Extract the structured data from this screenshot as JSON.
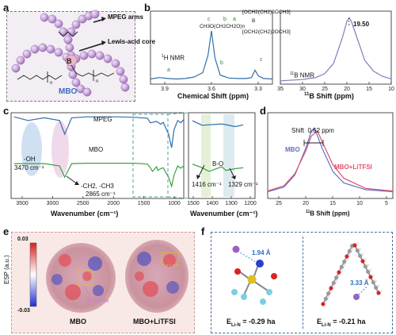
{
  "panels": {
    "a": {
      "label": "a",
      "arrow_labels": [
        "MPEG arms",
        "Lewis-acid core"
      ],
      "caption": "MBO",
      "core_letter": "B",
      "subscript": "n"
    },
    "b": {
      "label": "b",
      "h_nmr": {
        "title": "1H NMR",
        "xlabel": "Chemical Shift (ppm)",
        "ticks": [
          "3.9",
          "3.6",
          "3.3"
        ],
        "peak_letters": [
          "a",
          "b",
          "c"
        ],
        "structure_text": "[OCH2(CH2)2OCH3]",
        "structure_left": "CH3O(CH2CH2O)n",
        "structure_right": "[OCH2(CH2)2OCH3]",
        "structure_letters": [
          "c",
          "b",
          "a"
        ]
      },
      "b_nmr": {
        "title": "11B NMR",
        "xlabel": "11B Shift (ppm)",
        "ticks": [
          "35",
          "30",
          "25",
          "20",
          "15",
          "10"
        ],
        "peak_value": "19.50"
      }
    },
    "c": {
      "label": "c",
      "series_labels": [
        "MPEG",
        "MBO"
      ],
      "annotations": {
        "oh": "-OH",
        "oh_value": "3470 cm⁻¹",
        "ch": "-CH2, -CH3",
        "ch_value": "2865 cm⁻¹",
        "bo": "B-O",
        "bo_left": "1416 cm⁻¹",
        "bo_right": "1329 cm⁻¹"
      },
      "left_xlabel": "Wavenumber (cm⁻¹)",
      "right_xlabel": "Wavenumber (cm⁻¹)",
      "left_ticks": [
        "3500",
        "3000",
        "2500",
        "2000",
        "1500",
        "1000"
      ],
      "right_ticks": [
        "1500",
        "1400",
        "1300",
        "1200"
      ]
    },
    "d": {
      "label": "d",
      "shift_label": "Shift",
      "shift_value": "0.62 ppm",
      "series": [
        "MBO",
        "MBO+LiTFSI"
      ],
      "xlabel": "11B Shift (ppm)",
      "ticks": [
        "25",
        "20",
        "15",
        "10",
        "5"
      ]
    },
    "e": {
      "label": "e",
      "colorbar_title": "ESP (a.u.)",
      "colorbar_max": "0.03",
      "colorbar_min": "-0.03",
      "b_atom": "B atom",
      "captions": [
        "MBO",
        "MBO+LiTFSI"
      ]
    },
    "f": {
      "label": "f",
      "left_distance": "1.94 Å",
      "right_distance": "3.33 Å",
      "left_energy": "E",
      "left_energy_sub": "Li-N",
      "left_energy_value": " = -0.29 ha",
      "right_energy": "E",
      "right_energy_sub": "Li-N",
      "right_energy_value": " = -0.21 ha"
    }
  },
  "colors": {
    "mpeg": "#2f6fa8",
    "mbo": "#3aa23a",
    "litfsi": "#e0526a",
    "mbo_blue": "#5f6fc8",
    "sphere": "#c9a6dd",
    "label_blue": "#3b6cc0"
  },
  "chart_data": [
    {
      "type": "line",
      "title": "1H NMR",
      "xlabel": "Chemical Shift (ppm)",
      "x": [
        3.95,
        3.9,
        3.85,
        3.8,
        3.75,
        3.7,
        3.65,
        3.62,
        3.6,
        3.58,
        3.55,
        3.5,
        3.45,
        3.4,
        3.37,
        3.35,
        3.33,
        3.3,
        3.25
      ],
      "values": [
        0.02,
        0.05,
        0.03,
        0.02,
        0.03,
        0.06,
        0.15,
        0.5,
        1.0,
        0.45,
        0.1,
        0.04,
        0.03,
        0.03,
        0.05,
        0.2,
        0.08,
        0.03,
        0.02
      ],
      "xlim": [
        3.95,
        3.25
      ]
    },
    {
      "type": "line",
      "title": "11B NMR",
      "xlabel": "11B Shift (ppm)",
      "peak": 19.5,
      "x": [
        35,
        30,
        27,
        25,
        23,
        21,
        20,
        19.5,
        19,
        18,
        16,
        14,
        12,
        10
      ],
      "values": [
        0.03,
        0.05,
        0.08,
        0.14,
        0.3,
        0.7,
        0.95,
        1.0,
        0.95,
        0.75,
        0.35,
        0.18,
        0.1,
        0.06
      ],
      "xlim": [
        35,
        10
      ]
    },
    {
      "type": "line",
      "title": "",
      "xlabel": "Wavenumber (cm⁻¹)",
      "series": [
        {
          "name": "MPEG",
          "x": [
            3700,
            3470,
            3200,
            2950,
            2865,
            2750,
            2500,
            2000,
            1700,
            1500,
            1450,
            1350,
            1280,
            1240,
            1150,
            1100,
            1060,
            1000,
            950,
            900
          ],
          "values": [
            0.98,
            0.9,
            0.96,
            0.9,
            0.6,
            0.96,
            0.98,
            0.98,
            0.97,
            0.95,
            0.85,
            0.88,
            0.82,
            0.86,
            0.6,
            0.3,
            0.7,
            0.9,
            0.85,
            0.92
          ]
        },
        {
          "name": "MBO",
          "x": [
            3700,
            3470,
            3200,
            2950,
            2865,
            2750,
            2500,
            2000,
            1700,
            1500,
            1450,
            1416,
            1350,
            1329,
            1280,
            1240,
            1150,
            1100,
            1060,
            1000,
            950,
            900
          ],
          "values": [
            0.55,
            0.55,
            0.55,
            0.5,
            0.25,
            0.55,
            0.56,
            0.56,
            0.56,
            0.54,
            0.46,
            0.38,
            0.48,
            0.4,
            0.44,
            0.46,
            0.25,
            0.05,
            0.3,
            0.5,
            0.45,
            0.5
          ]
        }
      ],
      "xlim": [
        3750,
        900
      ]
    },
    {
      "type": "line",
      "title": "",
      "xlabel": "11B Shift (ppm)",
      "series": [
        {
          "name": "MBO",
          "x": [
            28,
            25,
            23,
            21,
            20,
            19.5,
            19,
            18,
            16,
            14,
            10,
            5
          ],
          "values": [
            0.05,
            0.12,
            0.3,
            0.7,
            0.95,
            1.0,
            0.92,
            0.7,
            0.35,
            0.18,
            0.08,
            0.05
          ]
        },
        {
          "name": "MBO+LiTFSI",
          "x": [
            28,
            25,
            23,
            21,
            20,
            19,
            18.88,
            18,
            16,
            14,
            10,
            5
          ],
          "values": [
            0.06,
            0.14,
            0.32,
            0.66,
            0.88,
            0.95,
            0.96,
            0.8,
            0.45,
            0.25,
            0.1,
            0.06
          ]
        }
      ],
      "xlim": [
        28,
        5
      ]
    }
  ]
}
